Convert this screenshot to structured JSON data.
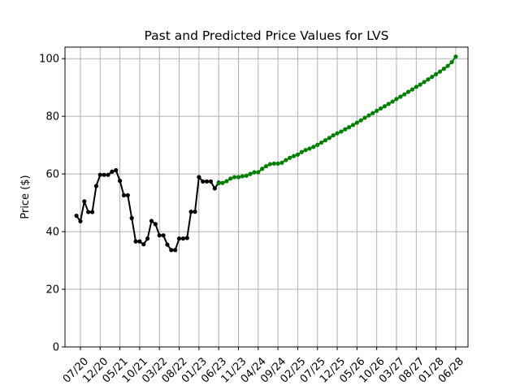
{
  "chart_data": {
    "type": "line",
    "title": "Past and Predicted Price Values for LVS",
    "xlabel": "",
    "ylabel": "Price ($)",
    "ylim": [
      0,
      104
    ],
    "yticks": [
      0,
      20,
      40,
      60,
      80,
      100
    ],
    "grid": true,
    "legend": "none",
    "x_tick_labels": [
      "07/20",
      "12/20",
      "05/21",
      "10/21",
      "03/22",
      "08/22",
      "01/23",
      "06/23",
      "11/23",
      "04/24",
      "09/24",
      "02/25",
      "07/25",
      "12/25",
      "05/26",
      "10/26",
      "03/27",
      "08/27",
      "01/28",
      "06/28"
    ],
    "series": [
      {
        "color": "#000000",
        "x": [
          "06/20",
          "07/20",
          "08/20",
          "09/20",
          "10/20",
          "11/20",
          "12/20",
          "01/21",
          "02/21",
          "03/21",
          "04/21",
          "05/21",
          "06/21",
          "07/21",
          "08/21",
          "09/21",
          "10/21",
          "11/21",
          "12/21",
          "01/22",
          "02/22",
          "03/22",
          "04/22",
          "05/22",
          "06/22",
          "07/22",
          "08/22",
          "09/22",
          "10/22",
          "11/22",
          "12/22",
          "01/23",
          "02/23",
          "03/23",
          "04/23",
          "05/23",
          "06/23"
        ],
        "values": [
          45.5,
          43.6,
          50.5,
          46.8,
          46.8,
          55.8,
          59.7,
          59.7,
          59.7,
          60.8,
          61.3,
          57.6,
          52.6,
          52.6,
          44.7,
          36.6,
          36.6,
          35.6,
          37.6,
          43.7,
          42.6,
          38.7,
          38.7,
          35.5,
          33.6,
          33.6,
          37.6,
          37.6,
          37.8,
          46.9,
          46.9,
          58.9,
          57.4,
          57.4,
          57.4,
          55.0,
          57.0
        ]
      },
      {
        "color": "#008000",
        "x": [
          "06/23",
          "07/23",
          "08/23",
          "09/23",
          "10/23",
          "11/23",
          "12/23",
          "01/24",
          "02/24",
          "03/24",
          "04/24",
          "05/24",
          "06/24",
          "07/24",
          "08/24",
          "09/24",
          "10/24",
          "11/24",
          "12/24",
          "01/25",
          "02/25",
          "03/25",
          "04/25",
          "05/25",
          "06/25",
          "07/25",
          "08/25",
          "09/25",
          "10/25",
          "11/25",
          "12/25",
          "01/26",
          "02/26",
          "03/26",
          "04/26",
          "05/26",
          "06/26",
          "07/26",
          "08/26",
          "09/26",
          "10/26",
          "11/26",
          "12/26",
          "01/27",
          "02/27",
          "03/27",
          "04/27",
          "05/27",
          "06/27",
          "07/27",
          "08/27",
          "09/27",
          "10/27",
          "11/27",
          "12/27",
          "01/28",
          "02/28",
          "03/28",
          "04/28",
          "05/28",
          "06/28"
        ],
        "values": [
          56.8,
          56.9,
          57.5,
          58.4,
          58.9,
          58.9,
          59.2,
          59.4,
          60.0,
          60.6,
          60.6,
          61.8,
          62.7,
          63.4,
          63.6,
          63.6,
          63.9,
          64.8,
          65.6,
          66.2,
          66.7,
          67.6,
          68.3,
          68.8,
          69.4,
          70.1,
          70.9,
          71.7,
          72.5,
          73.4,
          74.1,
          74.7,
          75.5,
          76.2,
          77.0,
          77.8,
          78.6,
          79.5,
          80.3,
          81.1,
          81.9,
          82.7,
          83.5,
          84.3,
          85.1,
          86.0,
          86.8,
          87.6,
          88.5,
          89.3,
          90.2,
          91.0,
          91.9,
          92.8,
          93.7,
          94.6,
          95.5,
          96.5,
          97.5,
          98.8,
          100.7
        ]
      }
    ]
  }
}
